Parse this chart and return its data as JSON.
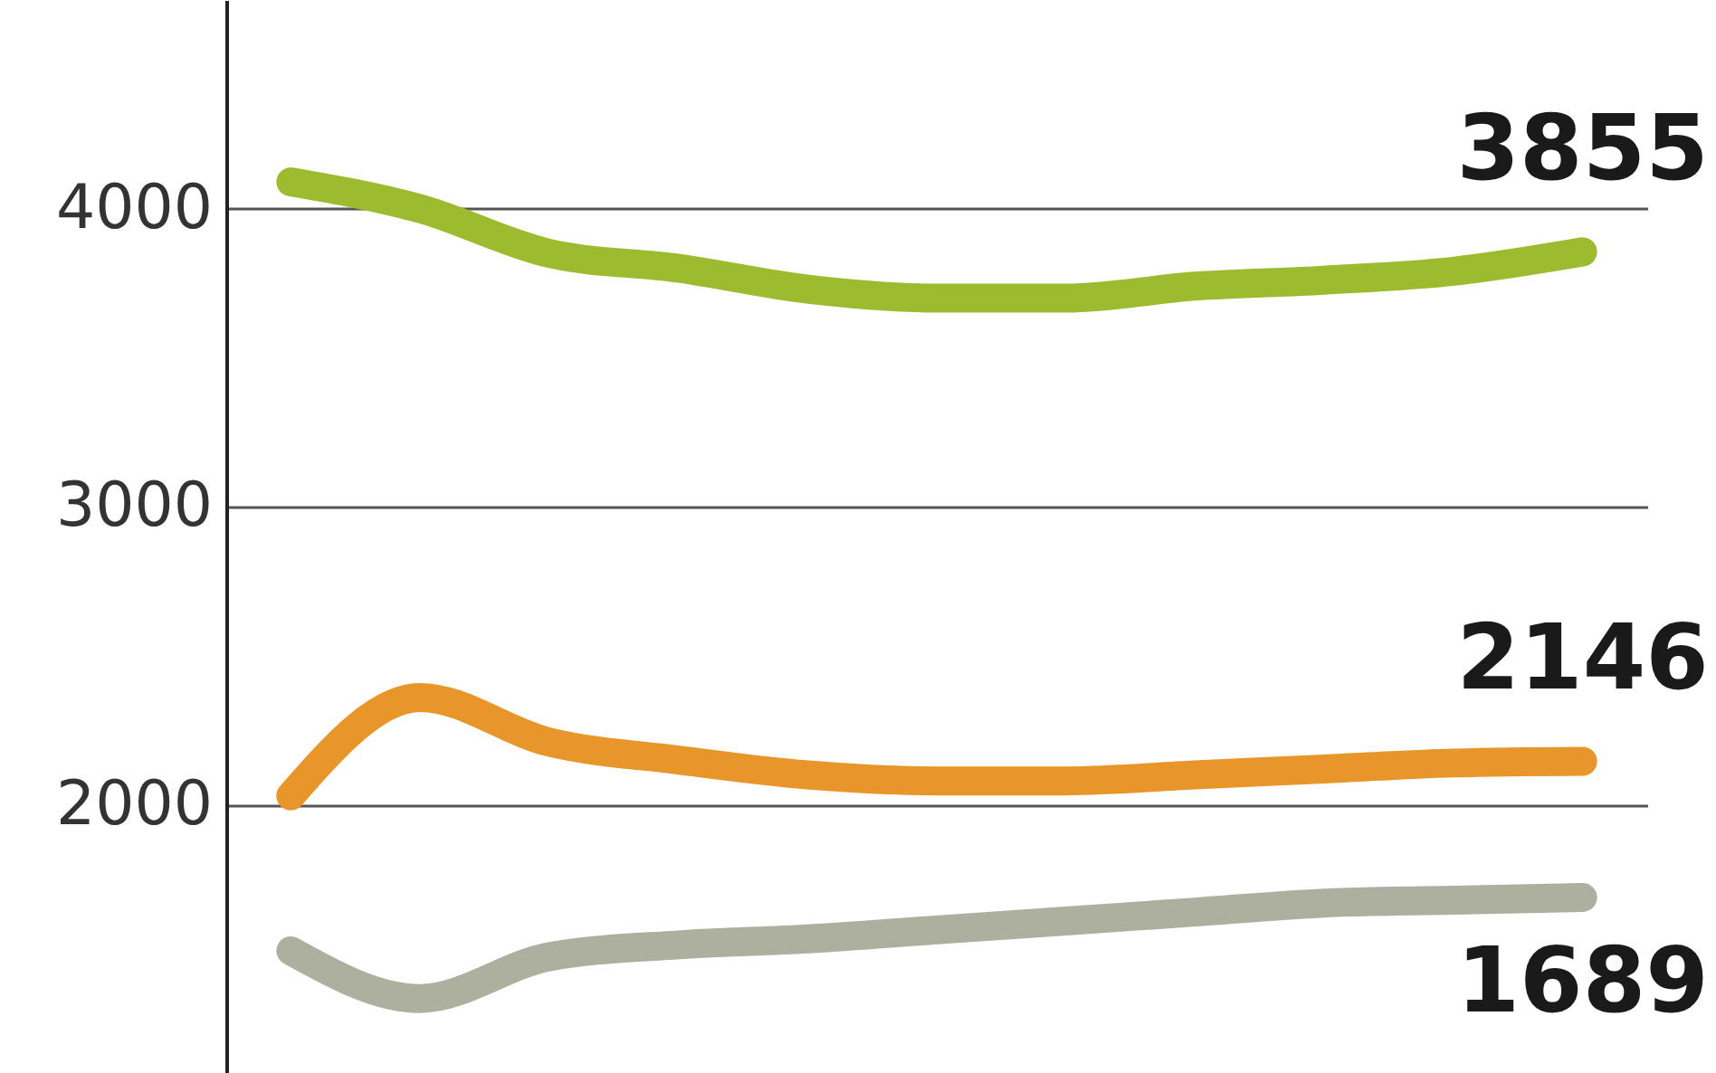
{
  "chart_data": {
    "type": "line",
    "categories": [
      null,
      null,
      null,
      null,
      null,
      null,
      null,
      null,
      null,
      null,
      null
    ],
    "series": [
      {
        "color": "#9cbb2e",
        "values": [
          4090,
          4000,
          3850,
          3800,
          3730,
          3700,
          3700,
          3740,
          3760,
          3790,
          3855
        ],
        "value_labels": [
          null,
          null,
          null,
          null,
          null,
          null,
          null,
          null,
          null,
          null,
          "3855"
        ]
      },
      {
        "color": "#e8962a",
        "values": [
          2030,
          2360,
          2210,
          2150,
          2100,
          2080,
          2080,
          2100,
          2120,
          2140,
          2146
        ],
        "value_labels": [
          null,
          null,
          null,
          null,
          null,
          null,
          null,
          null,
          null,
          null,
          "2146"
        ]
      },
      {
        "color": "#adaf9f",
        "values": [
          1510,
          1350,
          1490,
          1530,
          1550,
          1580,
          1610,
          1640,
          1670,
          1680,
          1689
        ],
        "value_labels": [
          null,
          null,
          null,
          null,
          null,
          null,
          null,
          null,
          null,
          null,
          "1689"
        ]
      }
    ],
    "ylim": [
      1100,
      4700
    ],
    "yticks": [
      2000,
      3000,
      4000
    ],
    "grid": "y",
    "tick_labels": "y"
  }
}
